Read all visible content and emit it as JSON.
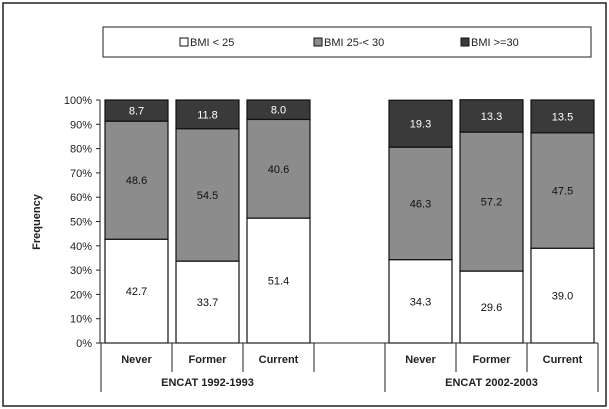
{
  "chart_data": {
    "type": "bar",
    "stacked": true,
    "ylabel": "Frequency",
    "ylim": [
      0,
      100
    ],
    "yticks": [
      "0%",
      "10%",
      "20%",
      "30%",
      "40%",
      "50%",
      "60%",
      "70%",
      "80%",
      "90%",
      "100%"
    ],
    "legend_position": "top",
    "groups": [
      {
        "label": "ENCAT 1992-1993",
        "categories": [
          "Never",
          "Former",
          "Current"
        ]
      },
      {
        "label": "ENCAT 2002-2003",
        "categories": [
          "Never",
          "Former",
          "Current"
        ]
      }
    ],
    "series": [
      {
        "name": "BMI < 25",
        "color": "#ffffff",
        "values": [
          "42.7",
          "33.7",
          "51.4",
          "34.3",
          "29.6",
          "39.0"
        ]
      },
      {
        "name": "BMI 25-< 30",
        "color": "#8c8c8c",
        "values": [
          "48.6",
          "54.5",
          "40.6",
          "46.3",
          "57.2",
          "47.5"
        ]
      },
      {
        "name": "BMI >=30",
        "color": "#3a3a3a",
        "values": [
          "8.7",
          "11.8",
          "8.0",
          "19.3",
          "13.3",
          "13.5"
        ]
      }
    ]
  }
}
